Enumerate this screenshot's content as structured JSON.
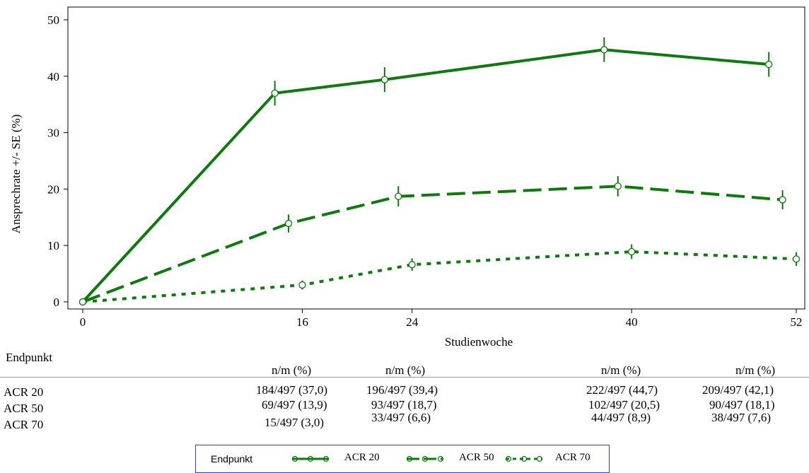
{
  "chart_data": {
    "type": "line",
    "xlabel": "Studienwoche",
    "ylabel": "Ansprechrate +/- SE (%)",
    "xlim": [
      0,
      52
    ],
    "ylim": [
      0,
      50
    ],
    "xticks": [
      "0",
      "16",
      "24",
      "40",
      "52"
    ],
    "yticks": [
      "0",
      "10",
      "20",
      "30",
      "40",
      "50"
    ],
    "grid": false,
    "series": [
      {
        "name": "ACR 20",
        "dash": "solid",
        "color": "#0e7a0e",
        "x": [
          0,
          14,
          22,
          38,
          50
        ],
        "y": [
          0,
          37.0,
          39.4,
          44.7,
          42.1
        ],
        "se": [
          0,
          2.2,
          2.2,
          2.2,
          2.2
        ]
      },
      {
        "name": "ACR 50",
        "dash": "long",
        "color": "#0e7a0e",
        "x": [
          0,
          15,
          23,
          39,
          51
        ],
        "y": [
          0,
          13.9,
          18.7,
          20.5,
          18.1
        ],
        "se": [
          0,
          1.6,
          1.8,
          1.8,
          1.7
        ]
      },
      {
        "name": "ACR 70",
        "dash": "short",
        "color": "#0e7a0e",
        "x": [
          0,
          16,
          24,
          40,
          52
        ],
        "y": [
          0,
          3.0,
          6.6,
          8.9,
          7.6
        ],
        "se": [
          0,
          0.8,
          1.1,
          1.3,
          1.2
        ]
      }
    ]
  },
  "table": {
    "header": "Endpunkt",
    "col_header": "n/m (%)",
    "rows": [
      {
        "label": "ACR 20",
        "cells": [
          "184/497 (37,0)",
          "196/497 (39,4)",
          "222/497 (44,7)",
          "209/497 (42,1)"
        ]
      },
      {
        "label": "ACR 50",
        "cells": [
          "69/497 (13,9)",
          "93/497 (18,7)",
          "102/497 (20,5)",
          "90/497 (18,1)"
        ]
      },
      {
        "label": "ACR 70",
        "cells": [
          "15/497 (3,0)",
          "33/497 (6,6)",
          "44/497 (8,9)",
          "38/497 (7,6)"
        ]
      }
    ]
  },
  "legend": {
    "title": "Endpunkt",
    "items": [
      "ACR 20",
      "ACR 50",
      "ACR 70"
    ]
  }
}
